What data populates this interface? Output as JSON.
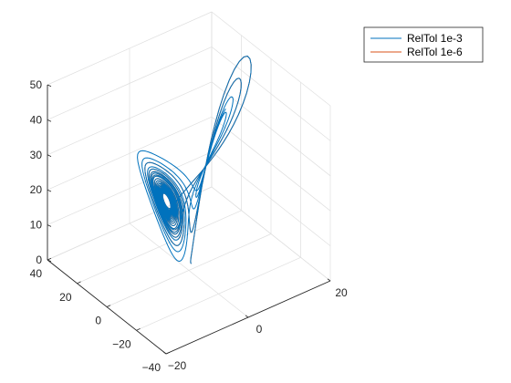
{
  "chart_data": {
    "type": "line",
    "projection": "3d",
    "title": "",
    "xlabel": "",
    "ylabel": "",
    "zlabel": "",
    "xlim": [
      -20,
      20
    ],
    "ylim": [
      -40,
      40
    ],
    "zlim": [
      0,
      50
    ],
    "x_ticks": [
      -20,
      0,
      20
    ],
    "y_ticks": [
      -40,
      -20,
      0,
      20,
      40
    ],
    "z_ticks": [
      0,
      10,
      20,
      30,
      40,
      50
    ],
    "x_tick_labels": [
      "−20",
      "0",
      "20"
    ],
    "y_tick_labels": [
      "−40",
      "−20",
      "0",
      "20",
      "40"
    ],
    "z_tick_labels": [
      "0",
      "10",
      "20",
      "30",
      "40",
      "50"
    ],
    "grid": true,
    "box": false,
    "legend_position": "top-right",
    "system": "Lorenz attractor",
    "series": [
      {
        "name": "RelTol 1e-3",
        "color": "#0072BD",
        "initial_point": [
          1,
          1,
          1
        ]
      },
      {
        "name": "RelTol 1e-6",
        "color": "#D95319",
        "initial_point": [
          1,
          1,
          1
        ]
      }
    ]
  }
}
